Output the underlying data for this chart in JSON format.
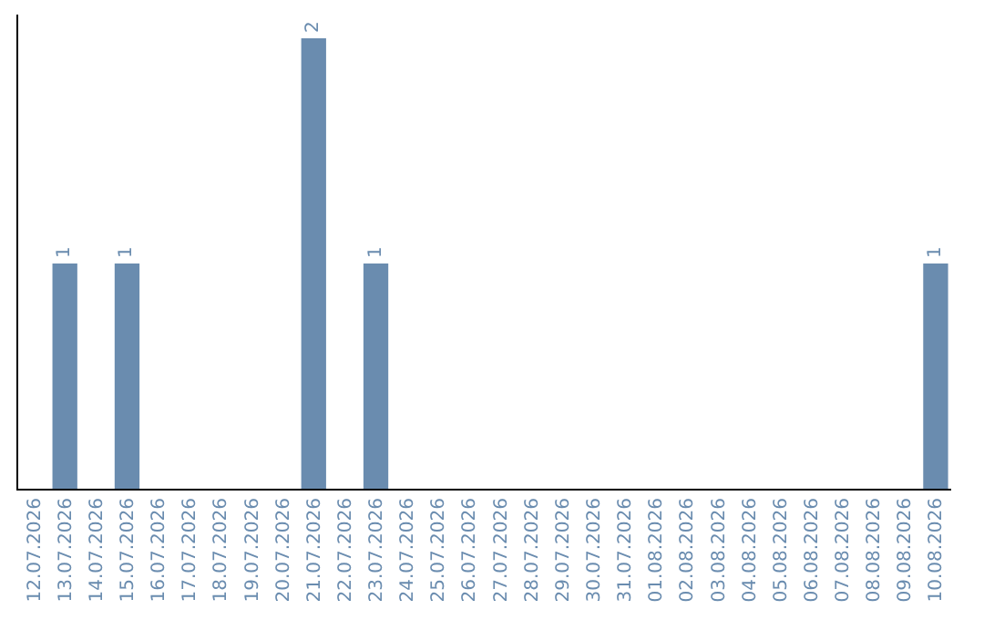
{
  "chart_data": {
    "type": "bar",
    "categories": [
      "12.07.2026",
      "13.07.2026",
      "14.07.2026",
      "15.07.2026",
      "16.07.2026",
      "17.07.2026",
      "18.07.2026",
      "19.07.2026",
      "20.07.2026",
      "21.07.2026",
      "22.07.2026",
      "23.07.2026",
      "24.07.2026",
      "25.07.2026",
      "26.07.2026",
      "27.07.2026",
      "28.07.2026",
      "29.07.2026",
      "30.07.2026",
      "31.07.2026",
      "01.08.2026",
      "02.08.2026",
      "03.08.2026",
      "04.08.2026",
      "05.08.2026",
      "06.08.2026",
      "07.08.2026",
      "08.08.2026",
      "09.08.2026",
      "10.08.2026"
    ],
    "values": [
      0,
      1,
      0,
      1,
      0,
      0,
      0,
      0,
      0,
      2,
      0,
      1,
      0,
      0,
      0,
      0,
      0,
      0,
      0,
      0,
      0,
      0,
      0,
      0,
      0,
      0,
      0,
      0,
      0,
      1
    ],
    "value_labels": [
      null,
      "1",
      null,
      "1",
      null,
      null,
      null,
      null,
      null,
      "2",
      null,
      "1",
      null,
      null,
      null,
      null,
      null,
      null,
      null,
      null,
      null,
      null,
      null,
      null,
      null,
      null,
      null,
      null,
      null,
      "1"
    ],
    "color": "#6a8caf",
    "tick_labels": "x"
  }
}
